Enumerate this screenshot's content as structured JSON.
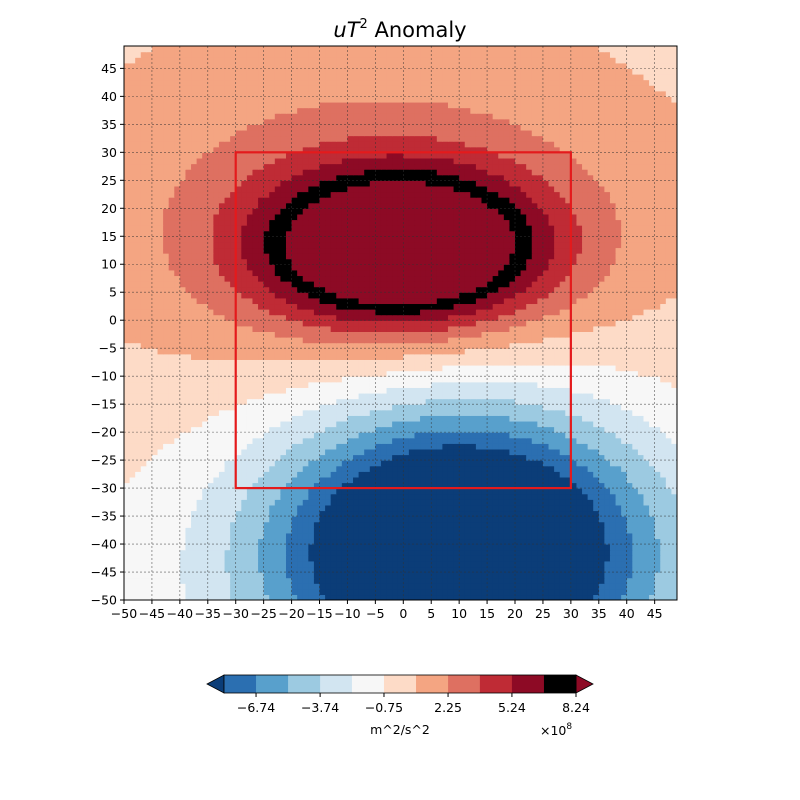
{
  "chart_data": {
    "type": "heatmap",
    "title": "uT² Anomaly",
    "title_parts": {
      "base": "uT",
      "sup": "2",
      "rest": " Anomaly"
    },
    "x": {
      "lim": [
        -50,
        49
      ],
      "ticks": [
        -50,
        -45,
        -40,
        -35,
        -30,
        -25,
        -20,
        -15,
        -10,
        -5,
        0,
        5,
        10,
        15,
        20,
        25,
        30,
        35,
        40,
        45
      ]
    },
    "y": {
      "lim": [
        -50,
        49
      ],
      "ticks": [
        -50,
        -45,
        -40,
        -35,
        -30,
        -25,
        -20,
        -15,
        -10,
        -5,
        0,
        5,
        10,
        15,
        20,
        25,
        30,
        35,
        40,
        45
      ]
    },
    "grid": true,
    "box": {
      "x": [
        -30,
        30
      ],
      "y": [
        -30,
        30
      ],
      "color": "#e41a1c"
    },
    "field": {
      "background": 0.3,
      "components": [
        {
          "amp": 11.5,
          "cx": 0,
          "cy": 13,
          "sx": 24,
          "sy": 13
        },
        {
          "amp": 3.2,
          "cx": -5,
          "cy": 18,
          "sx": 45,
          "sy": 28
        },
        {
          "amp": -12.5,
          "cx": 10,
          "cy": -40,
          "sx": 32,
          "sy": 24
        },
        {
          "amp": -3.0,
          "cx": 10,
          "cy": -50,
          "sx": 60,
          "sy": 35
        }
      ]
    },
    "levels": [
      -10,
      -8.24,
      -6.74,
      -5.24,
      -3.74,
      -2.25,
      -0.75,
      0.75,
      2.25,
      3.74,
      5.24,
      6.74,
      8.24,
      10
    ],
    "colors": [
      "#0b3d78",
      "#2b6fb1",
      "#58a0cc",
      "#9ccae1",
      "#d2e5f1",
      "#f7f7f7",
      "#fddbc7",
      "#f4a582",
      "#de7061",
      "#bf2b35",
      "#8d0a25"
    ],
    "colorbar": {
      "tick_values": [
        -6.74,
        -3.74,
        -0.75,
        2.25,
        5.24,
        8.24
      ],
      "tick_labels": [
        "−6.74",
        "−3.74",
        "−0.75",
        "2.25",
        "5.24",
        "8.24"
      ],
      "label": "m^2/s^2",
      "scale_base": "×10",
      "scale_exp": "8",
      "extend": "both"
    }
  }
}
